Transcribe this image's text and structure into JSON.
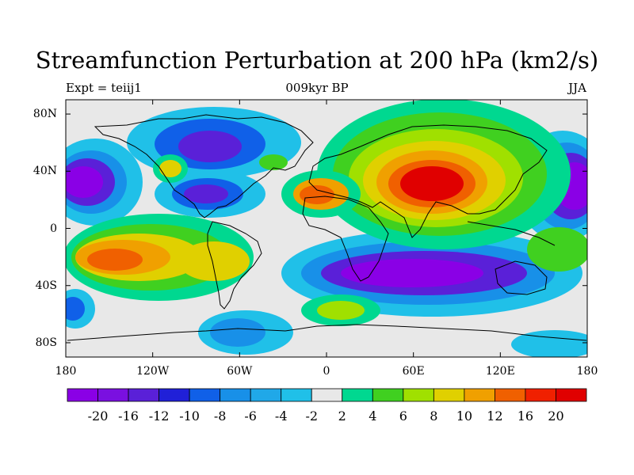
{
  "title": "Streamfunction Perturbation at 200 hPa (km2/s)",
  "subtitle_left": "Expt = teiij1",
  "subtitle_center": "009kyr BP",
  "subtitle_right": "JJA",
  "map": {
    "lon_range": [
      -180,
      180
    ],
    "lat_range": [
      -90,
      90
    ],
    "lat_ticks": [
      {
        "value": 80,
        "label": "80N"
      },
      {
        "value": 40,
        "label": "40N"
      },
      {
        "value": 0,
        "label": "0"
      },
      {
        "value": -40,
        "label": "40S"
      },
      {
        "value": -80,
        "label": "80S"
      }
    ],
    "lon_ticks": [
      {
        "value": -180,
        "label": "180"
      },
      {
        "value": -120,
        "label": "120W"
      },
      {
        "value": -60,
        "label": "60W"
      },
      {
        "value": 0,
        "label": "0"
      },
      {
        "value": 60,
        "label": "60E"
      },
      {
        "value": 120,
        "label": "120E"
      },
      {
        "value": 180,
        "label": "180"
      }
    ],
    "background": "#e8e8e8",
    "coastline_color": "#000000"
  },
  "colorbar": {
    "colors": [
      "#8a00e6",
      "#7a10e0",
      "#5a20d8",
      "#2020d8",
      "#1060e8",
      "#1890e8",
      "#20a8e8",
      "#20c0e8",
      "#e8e8e8",
      "#00d890",
      "#40d020",
      "#a0e000",
      "#e0d000",
      "#f0a000",
      "#f06000",
      "#f02000",
      "#e00000"
    ],
    "boundaries": [
      "-20",
      "-16",
      "-12",
      "-10",
      "-8",
      "-6",
      "-4",
      "-2",
      "2",
      "4",
      "6",
      "8",
      "10",
      "12",
      "16",
      "20"
    ]
  }
}
